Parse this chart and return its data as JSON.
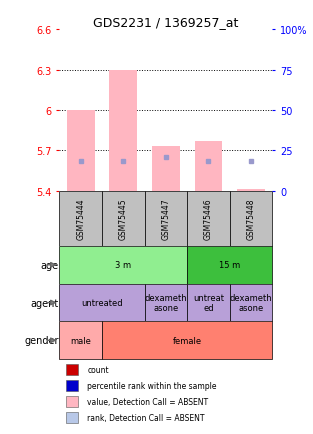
{
  "title": "GDS2231 / 1369257_at",
  "samples": [
    "GSM75444",
    "GSM75445",
    "GSM75447",
    "GSM75446",
    "GSM75448"
  ],
  "bar_bottoms": [
    5.4,
    5.4,
    5.4,
    5.4,
    5.4
  ],
  "bar_tops": [
    6.0,
    6.3,
    5.73,
    5.77,
    5.41
  ],
  "rank_dots_y": [
    5.62,
    5.62,
    5.65,
    5.62,
    5.62
  ],
  "bar_color": "#FFB6C1",
  "rank_dot_color": "#9999CC",
  "ylim_left": [
    5.4,
    6.6
  ],
  "ylim_right": [
    0,
    100
  ],
  "yticks_left": [
    5.4,
    5.7,
    6.0,
    6.3,
    6.6
  ],
  "yticks_right": [
    0,
    25,
    50,
    75,
    100
  ],
  "ytick_labels_left": [
    "5.4",
    "5.7",
    "6",
    "6.3",
    "6.6"
  ],
  "ytick_labels_right": [
    "0",
    "25",
    "50",
    "75",
    "100%"
  ],
  "hlines": [
    5.7,
    6.0,
    6.3
  ],
  "age_groups": [
    {
      "label": "3 m",
      "start": 0,
      "end": 3,
      "color": "#90EE90"
    },
    {
      "label": "15 m",
      "start": 3,
      "end": 5,
      "color": "#3DBF3D"
    }
  ],
  "agent_groups": [
    {
      "label": "untreated",
      "start": 0,
      "end": 2,
      "color": "#B8A0D8"
    },
    {
      "label": "dexameth\nasone",
      "start": 2,
      "end": 3,
      "color": "#B8A0D8"
    },
    {
      "label": "untreat\ned",
      "start": 3,
      "end": 4,
      "color": "#B8A0D8"
    },
    {
      "label": "dexameth\nasone",
      "start": 4,
      "end": 5,
      "color": "#B8A0D8"
    }
  ],
  "gender_groups": [
    {
      "label": "male",
      "start": 0,
      "end": 1,
      "color": "#FFAAAA"
    },
    {
      "label": "female",
      "start": 1,
      "end": 5,
      "color": "#FF8070"
    }
  ],
  "legend_items": [
    {
      "color": "#CC0000",
      "label": "count"
    },
    {
      "color": "#0000CC",
      "label": "percentile rank within the sample"
    },
    {
      "color": "#FFB6C1",
      "label": "value, Detection Call = ABSENT"
    },
    {
      "color": "#B8C8E8",
      "label": "rank, Detection Call = ABSENT"
    }
  ],
  "row_labels": [
    "age",
    "agent",
    "gender"
  ],
  "bar_width": 0.65,
  "sample_box_color": "#C0C0C0"
}
